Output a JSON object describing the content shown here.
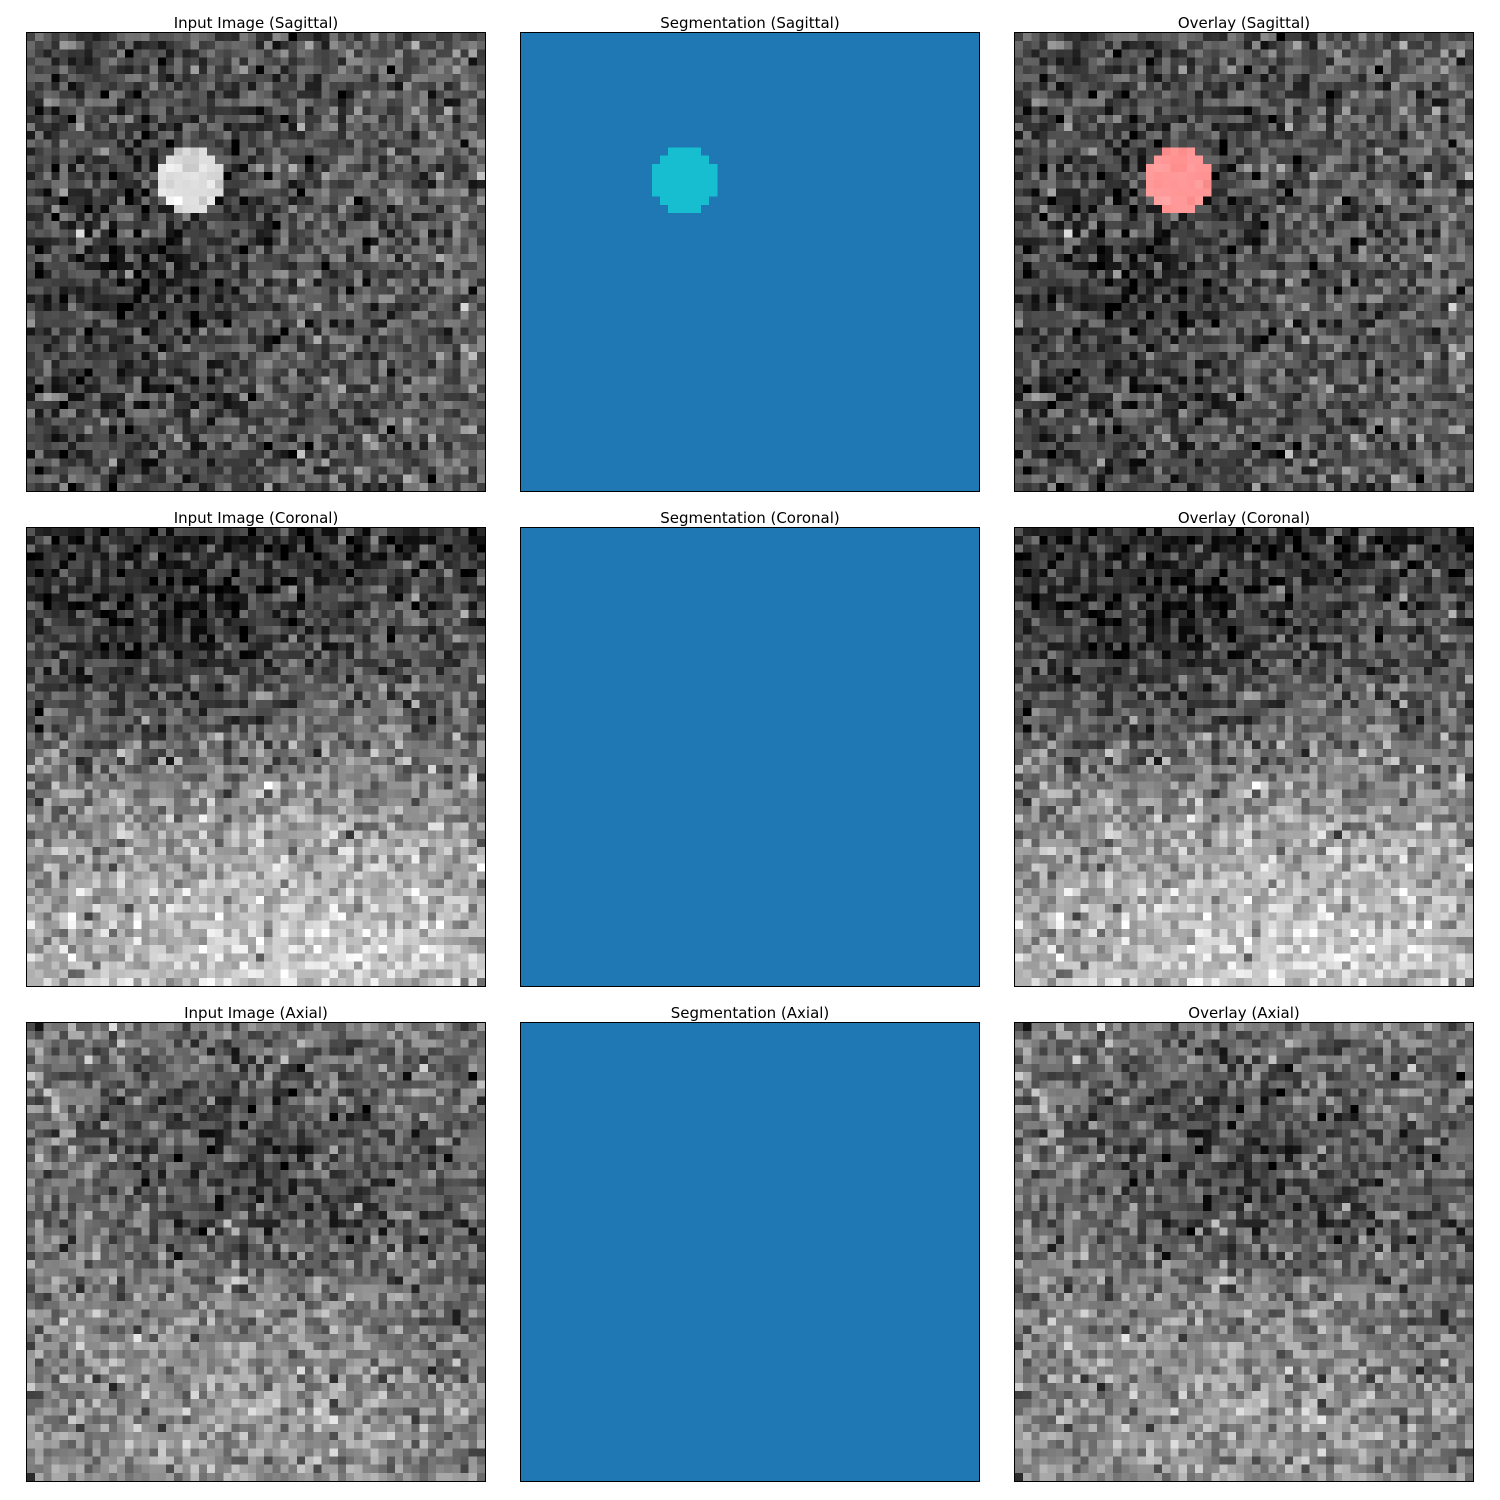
{
  "figure": {
    "rows": [
      {
        "view": "Sagittal",
        "panels": [
          {
            "kind": "input",
            "title": "Input Image (Sagittal)"
          },
          {
            "kind": "segmentation",
            "title": "Segmentation (Sagittal)"
          },
          {
            "kind": "overlay",
            "title": "Overlay (Sagittal)"
          }
        ]
      },
      {
        "view": "Coronal",
        "panels": [
          {
            "kind": "input",
            "title": "Input Image (Coronal)"
          },
          {
            "kind": "segmentation",
            "title": "Segmentation (Coronal)"
          },
          {
            "kind": "overlay",
            "title": "Overlay (Coronal)"
          }
        ]
      },
      {
        "view": "Axial",
        "panels": [
          {
            "kind": "input",
            "title": "Input Image (Axial)"
          },
          {
            "kind": "segmentation",
            "title": "Segmentation (Axial)"
          },
          {
            "kind": "overlay",
            "title": "Overlay (Axial)"
          }
        ]
      }
    ],
    "colors": {
      "segmentation_background": "#1f77b4",
      "segmentation_label": "#17becf",
      "overlay_label": "#f07070"
    }
  }
}
